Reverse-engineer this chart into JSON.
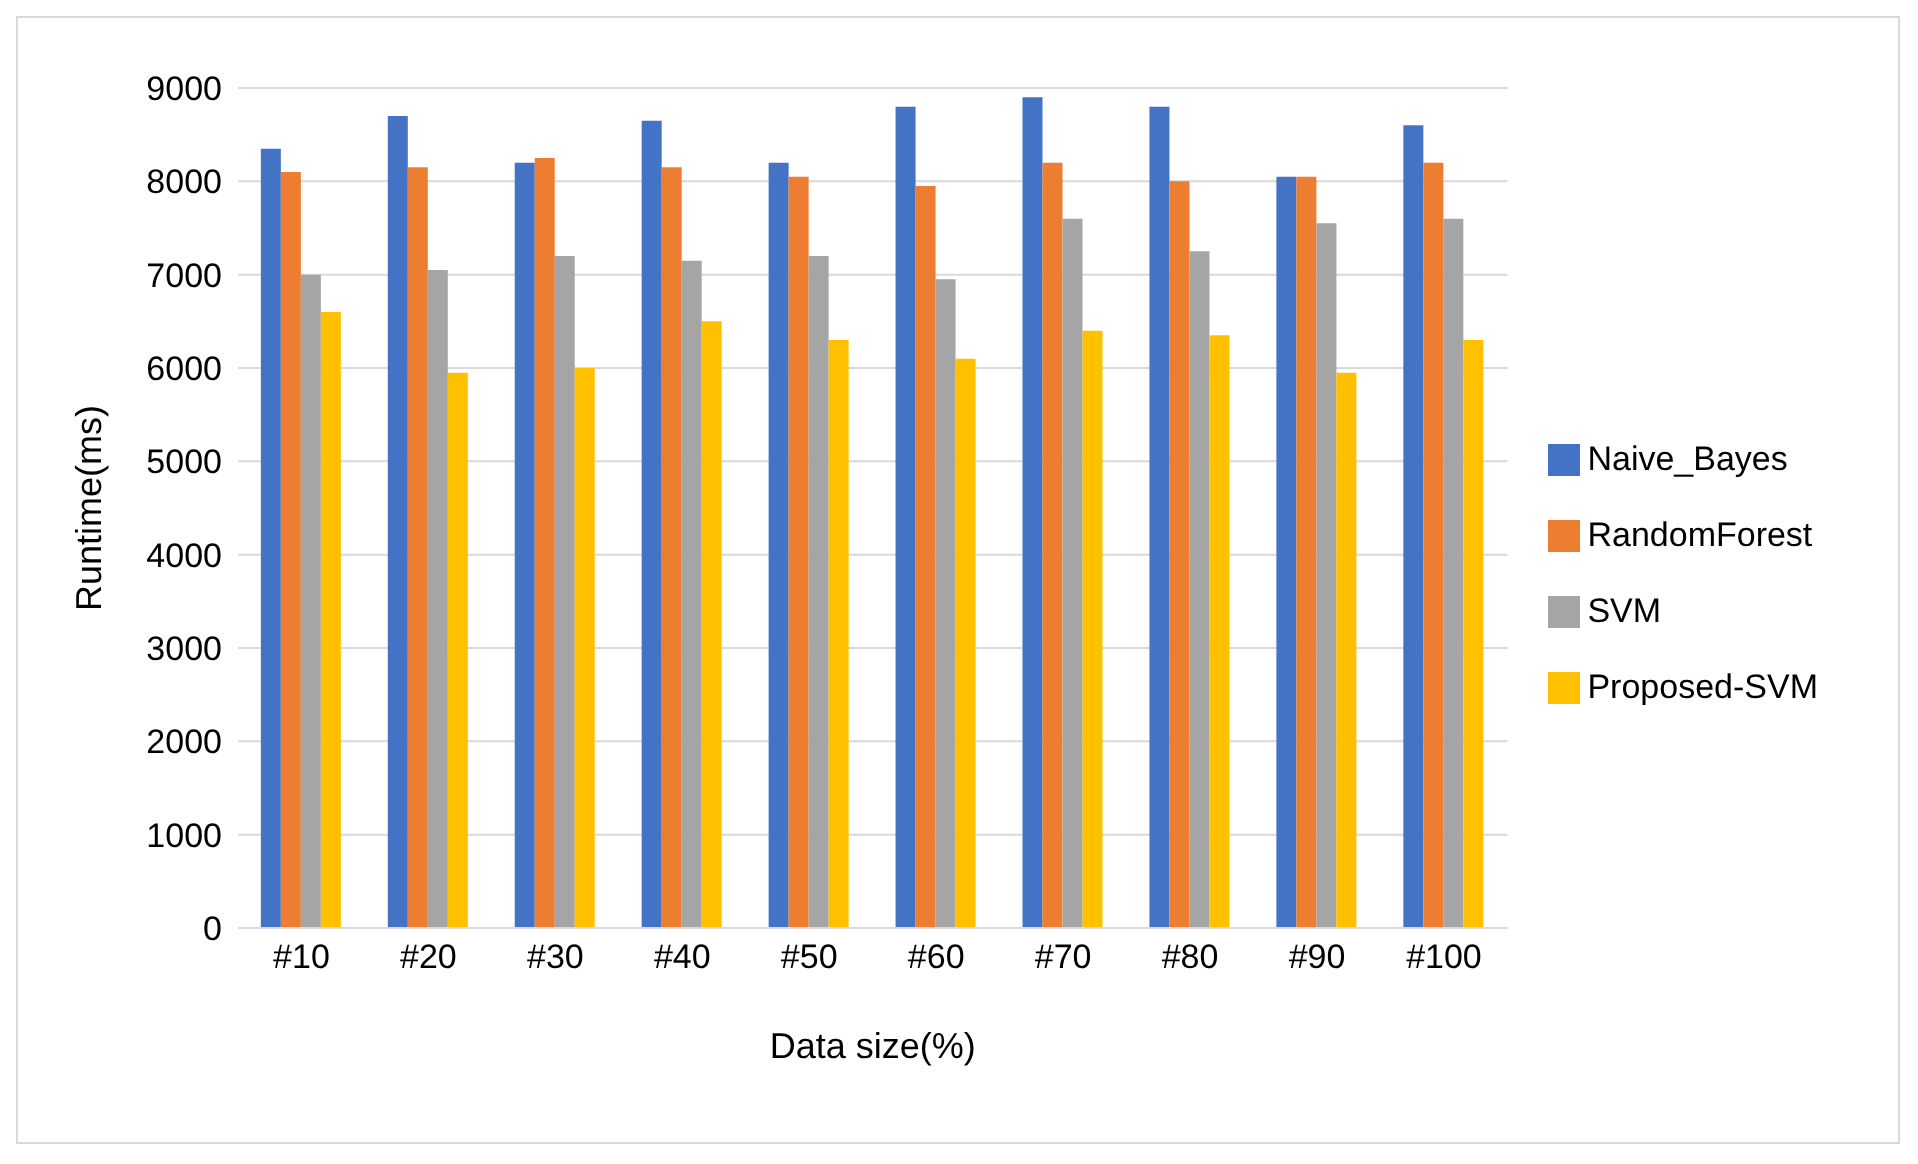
{
  "chart_data": {
    "type": "bar",
    "xlabel": "Data size(%)",
    "ylabel": "Runtime(ms)",
    "categories": [
      "#10",
      "#20",
      "#30",
      "#40",
      "#50",
      "#60",
      "#70",
      "#80",
      "#90",
      "#100"
    ],
    "series": [
      {
        "name": "Naive_Bayes",
        "color": "#4472c4",
        "values": [
          8350,
          8700,
          8200,
          8650,
          8200,
          8800,
          8900,
          8800,
          8050,
          8600
        ]
      },
      {
        "name": "RandomForest",
        "color": "#ed7d31",
        "values": [
          8100,
          8150,
          8250,
          8150,
          8050,
          7950,
          8200,
          8000,
          8050,
          8200
        ]
      },
      {
        "name": "SVM",
        "color": "#a5a5a5",
        "values": [
          7000,
          7050,
          7200,
          7150,
          7200,
          6950,
          7600,
          7250,
          7550,
          7600
        ]
      },
      {
        "name": "Proposed-SVM",
        "color": "#ffc000",
        "values": [
          6600,
          5950,
          6000,
          6500,
          6300,
          6100,
          6400,
          6350,
          5950,
          6300
        ]
      }
    ],
    "ylim": [
      0,
      9000
    ],
    "yticks": [
      0,
      1000,
      2000,
      3000,
      4000,
      5000,
      6000,
      7000,
      8000,
      9000
    ],
    "grid": "y",
    "legend": "right"
  }
}
